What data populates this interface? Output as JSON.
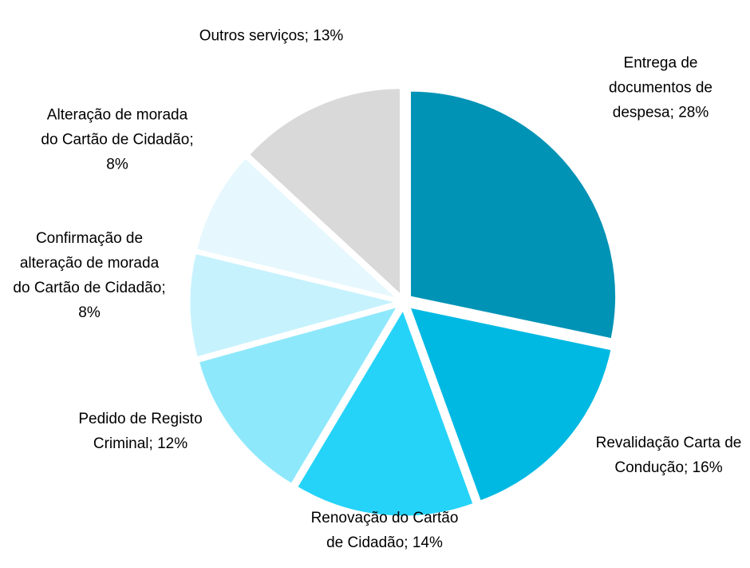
{
  "chart_data": {
    "type": "pie",
    "categories": [
      "Entrega de documentos de despesa;",
      "Revalidação Carta de Condução;",
      "Renovação do Cartão de Cidadão;",
      "Pedido de Registo Criminal;",
      "Confirmação de alteração de morada do Cartão de Cidadão;",
      "Alteração de morada do Cartão de Cidadão;",
      "Outros serviços;"
    ],
    "values": [
      28,
      16,
      14,
      12,
      8,
      8,
      13
    ],
    "value_labels": [
      "28%",
      "16%",
      "14%",
      "12%",
      "8%",
      "8%",
      "13%"
    ],
    "colors": [
      "#0093b5",
      "#00b9e3",
      "#25d3f8",
      "#8ee8fb",
      "#c6f2fd",
      "#e6f8fd",
      "#d9d9d9"
    ]
  }
}
